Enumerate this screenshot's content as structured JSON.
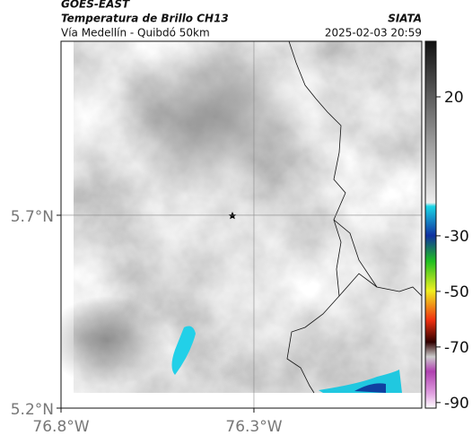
{
  "header": {
    "satellite": "GOES-EAST",
    "title": "Temperatura de Brillo CH13",
    "subtitle": "Vía Medellín - Quibdó 50km",
    "source": "SIATA",
    "datetime": "2025-02-03 20:59"
  },
  "map": {
    "lat_lim": [
      5.2,
      6.151
    ],
    "lon_lim": [
      -76.8,
      -75.865
    ],
    "lat_ticks": [
      {
        "value": 5.7,
        "label": "5.7°N"
      },
      {
        "value": 5.2,
        "label": "5.2°N"
      }
    ],
    "lon_ticks": [
      {
        "value": -76.8,
        "label": "76.8°W"
      },
      {
        "value": -76.3,
        "label": "76.3°W"
      }
    ]
  },
  "colorbar": {
    "lim": [
      -92,
      40
    ],
    "ticks": [
      20,
      -30,
      -50,
      -70,
      -90
    ]
  }
}
